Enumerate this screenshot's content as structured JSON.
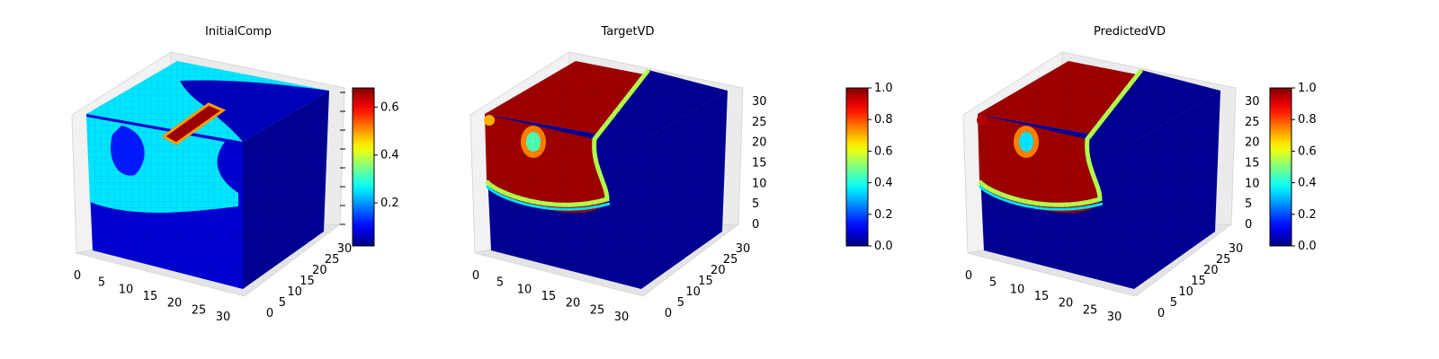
{
  "chart_data": [
    {
      "type": "heatmap",
      "title": "InitialComp",
      "colormap": "jet",
      "x_ticks": [
        "0",
        "5",
        "10",
        "15",
        "20",
        "25",
        "30"
      ],
      "y_ticks": [
        "0",
        "5",
        "10",
        "15",
        "20",
        "25",
        "30"
      ],
      "z_ticks": [],
      "colorbar": {
        "range": [
          0.02,
          0.68
        ],
        "ticks": [
          "0.2",
          "0.4",
          "0.6"
        ]
      },
      "approx_values": {
        "top_background": 0.38,
        "bright_bar": 0.68,
        "right_region": 0.02
      }
    },
    {
      "type": "heatmap",
      "title": "TargetVD",
      "colormap": "jet",
      "x_ticks": [
        "0",
        "5",
        "10",
        "15",
        "20",
        "25",
        "30"
      ],
      "y_ticks": [
        "0",
        "5",
        "10",
        "15",
        "20",
        "25",
        "30"
      ],
      "z_ticks": [
        "0",
        "5",
        "10",
        "15",
        "20",
        "25",
        "30"
      ],
      "colorbar": {
        "range": [
          0.0,
          1.0
        ],
        "ticks": [
          "0.0",
          "0.2",
          "0.4",
          "0.6",
          "0.8",
          "1.0"
        ]
      },
      "approx_values": {
        "phase_high": 1.0,
        "phase_low": 0.0,
        "inclusion_center": 0.45
      }
    },
    {
      "type": "heatmap",
      "title": "PredictedVD",
      "colormap": "jet",
      "x_ticks": [
        "0",
        "5",
        "10",
        "15",
        "20",
        "25",
        "30"
      ],
      "y_ticks": [
        "0",
        "5",
        "10",
        "15",
        "20",
        "25",
        "30"
      ],
      "z_ticks": [
        "0",
        "5",
        "10",
        "15",
        "20",
        "25",
        "30"
      ],
      "colorbar": {
        "range": [
          0.0,
          1.0
        ],
        "ticks": [
          "0.0",
          "0.2",
          "0.4",
          "0.6",
          "0.8",
          "1.0"
        ]
      },
      "approx_values": {
        "phase_high": 1.0,
        "phase_low": 0.0,
        "inclusion_center": 0.35
      }
    }
  ]
}
